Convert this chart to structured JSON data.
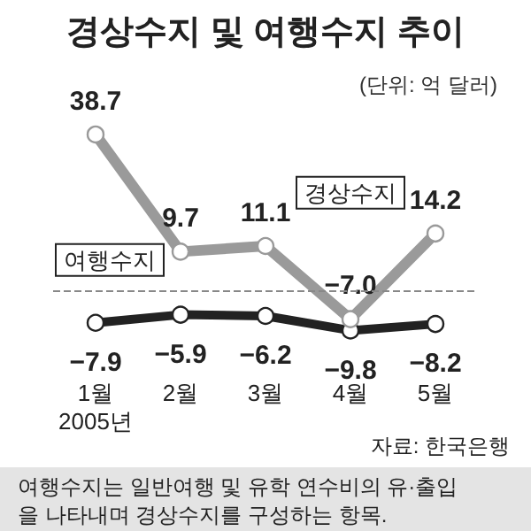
{
  "chart_data": {
    "type": "line",
    "title": "경상수지 및 여행수지 추이",
    "subtitle": "(단위: 억 달러)",
    "categories": [
      "1월\n2005년",
      "2월",
      "3월",
      "4월",
      "5월"
    ],
    "series": [
      {
        "name": "경상수지",
        "color": "#9a9a9a",
        "values": [
          38.7,
          9.7,
          11.1,
          -7.0,
          14.2
        ],
        "value_labels": [
          "38.7",
          "9.7",
          "11.1",
          "−7.0",
          "14.2"
        ]
      },
      {
        "name": "여행수지",
        "color": "#222222",
        "values": [
          -7.9,
          -5.9,
          -6.2,
          -9.8,
          -8.2
        ],
        "value_labels": [
          "−7.9",
          "−5.9",
          "−6.2",
          "−9.8",
          "−8.2"
        ]
      }
    ],
    "marker": "circle",
    "grid": false,
    "legend": false,
    "ref_lines": [
      {
        "axis": "y",
        "value": 0,
        "line_style": "dashed",
        "color": "#888888"
      }
    ],
    "annotations": [
      "자료: 한국은행",
      "여행수지는 일반여행 및 유학 연수비의 유·출입을 나타내며 경상수지를 구성하는 항목."
    ]
  }
}
